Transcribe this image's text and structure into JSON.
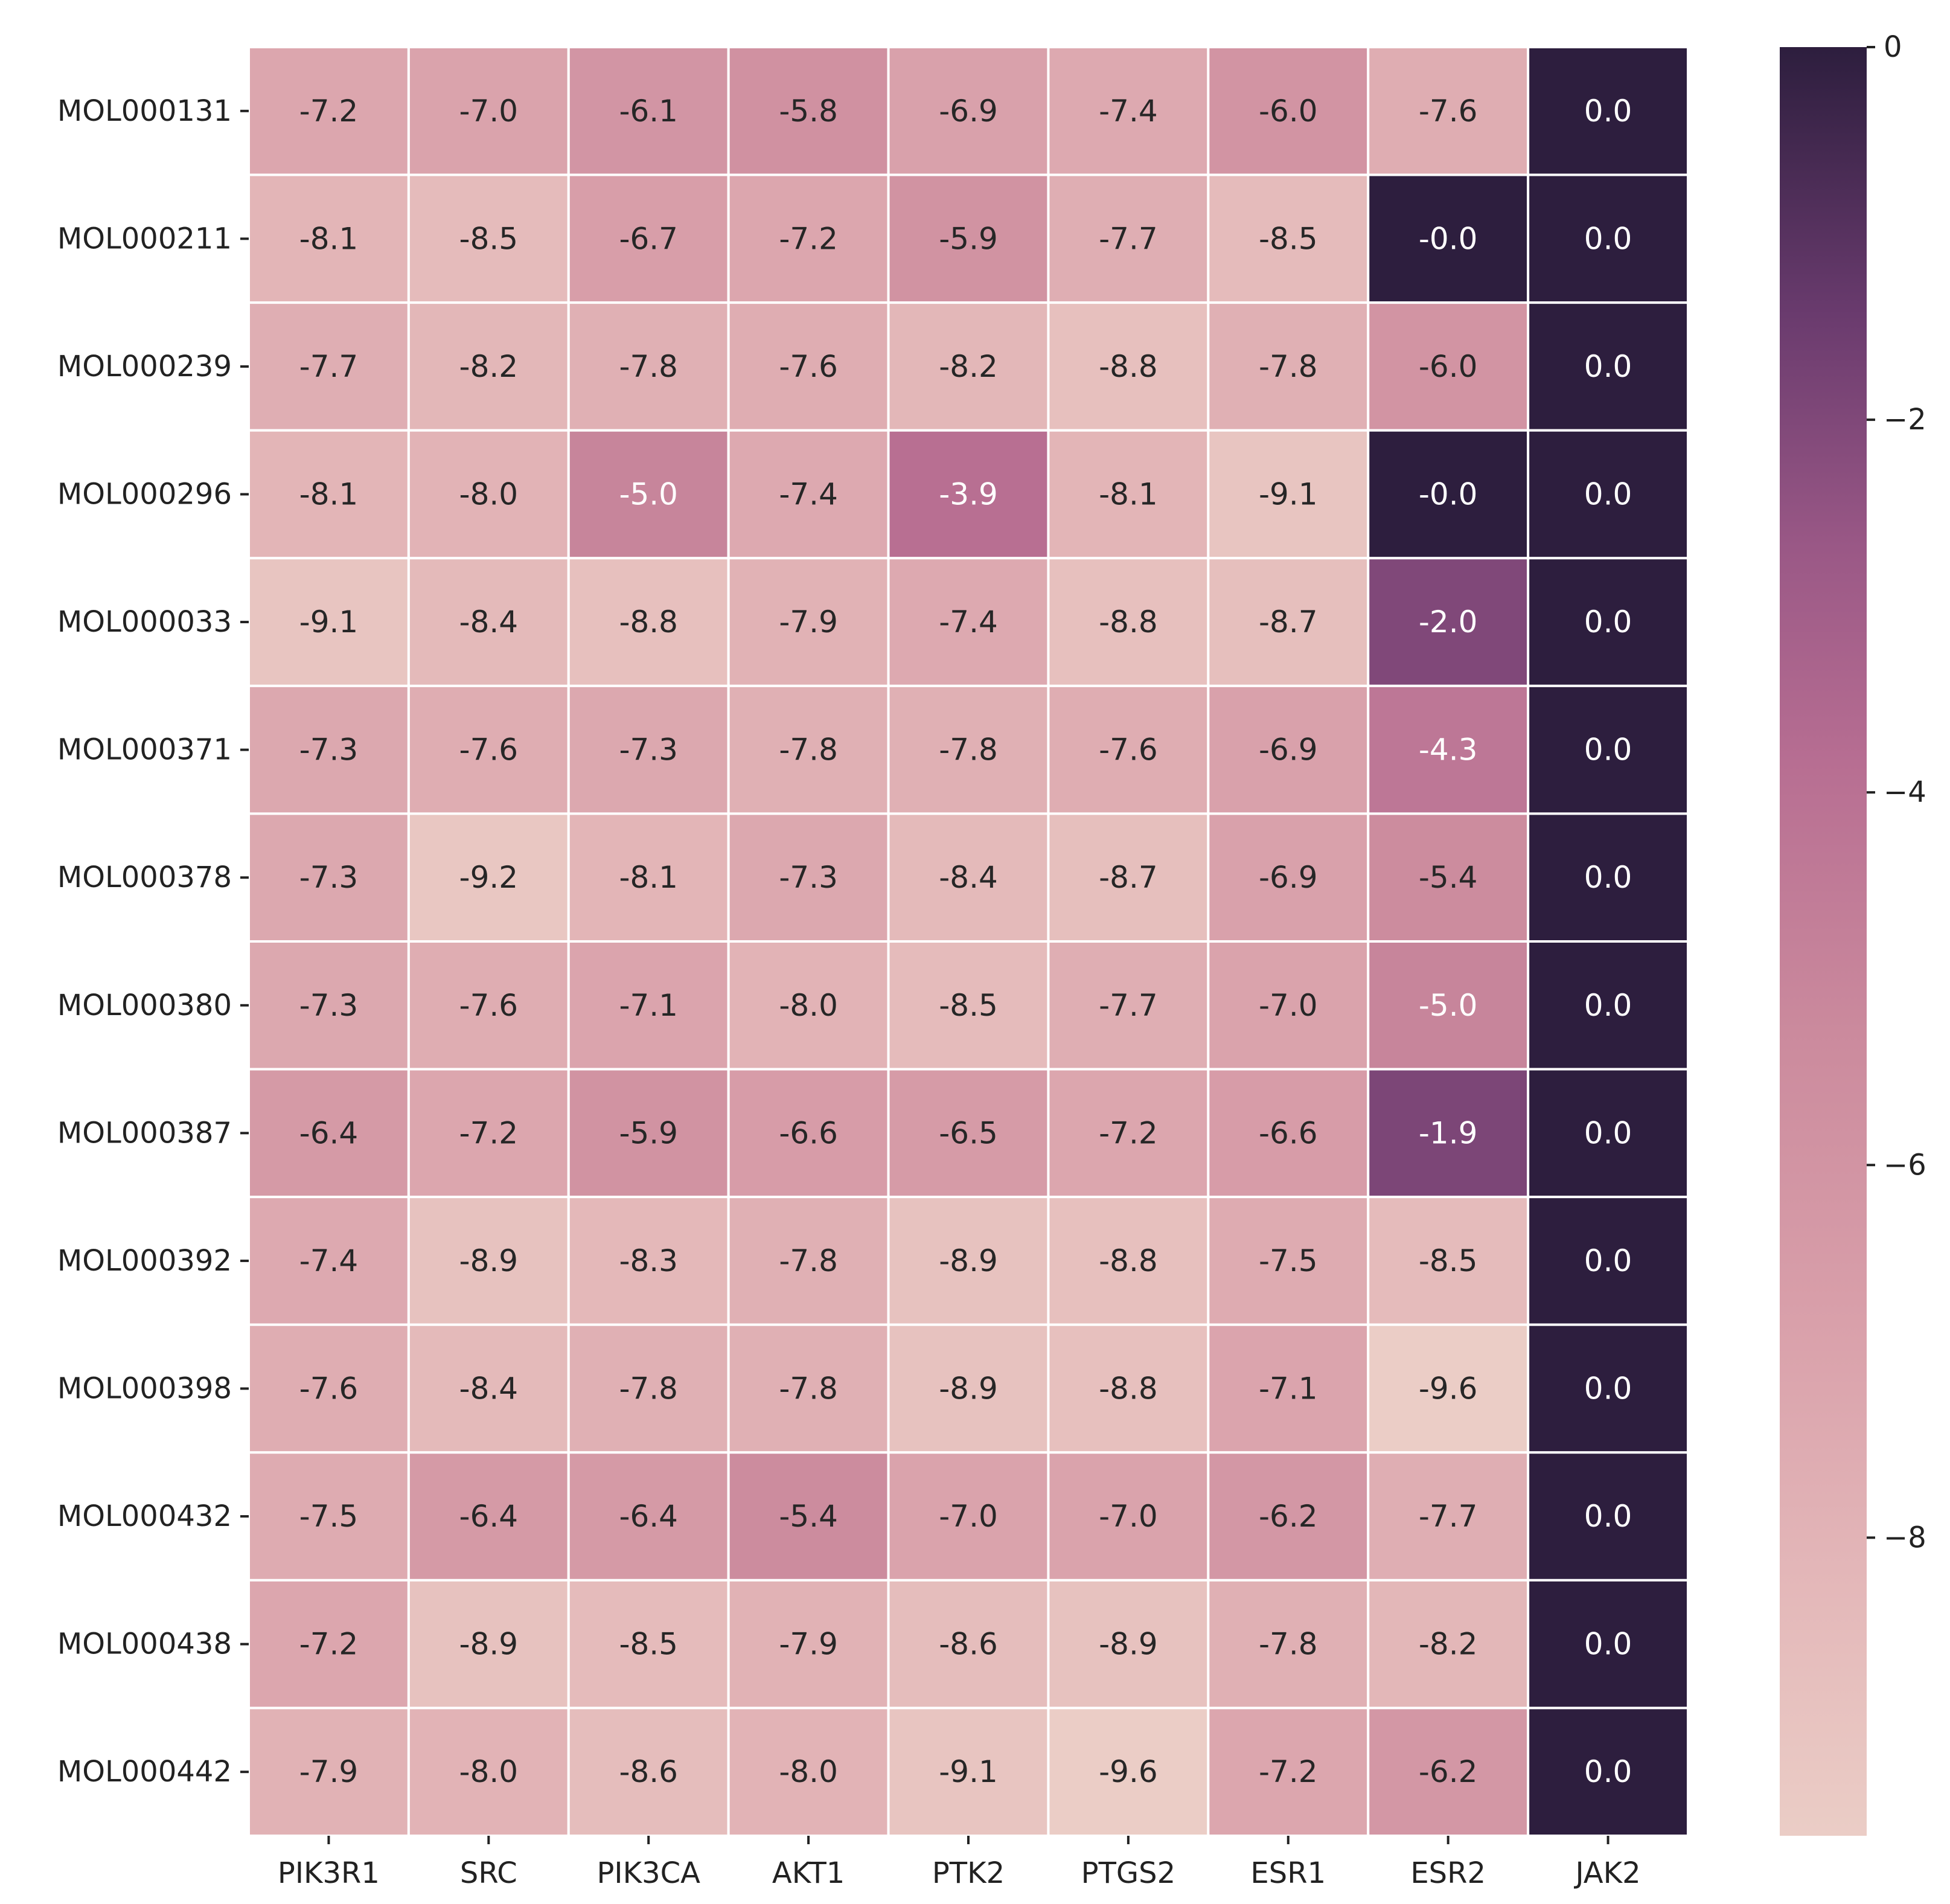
{
  "chart_data": {
    "type": "heatmap",
    "title": "",
    "xlabel": "",
    "ylabel": "",
    "columns": [
      "PIK3R1",
      "SRC",
      "PIK3CA",
      "AKT1",
      "PTK2",
      "PTGS2",
      "ESR1",
      "ESR2",
      "JAK2"
    ],
    "rows": [
      "MOL000131",
      "MOL000211",
      "MOL000239",
      "MOL000296",
      "MOL000033",
      "MOL000371",
      "MOL000378",
      "MOL000380",
      "MOL000387",
      "MOL000392",
      "MOL000398",
      "MOL000432",
      "MOL000438",
      "MOL000442"
    ],
    "values": [
      [
        -7.2,
        -7.0,
        -6.1,
        -5.8,
        -6.9,
        -7.4,
        -6.0,
        -7.6,
        0.0
      ],
      [
        -8.1,
        -8.5,
        -6.7,
        -7.2,
        -5.9,
        -7.7,
        -8.5,
        -0.0,
        0.0
      ],
      [
        -7.7,
        -8.2,
        -7.8,
        -7.6,
        -8.2,
        -8.8,
        -7.8,
        -6.0,
        0.0
      ],
      [
        -8.1,
        -8.0,
        -5.0,
        -7.4,
        -3.9,
        -8.1,
        -9.1,
        -0.0,
        0.0
      ],
      [
        -9.1,
        -8.4,
        -8.8,
        -7.9,
        -7.4,
        -8.8,
        -8.7,
        -2.0,
        0.0
      ],
      [
        -7.3,
        -7.6,
        -7.3,
        -7.8,
        -7.8,
        -7.6,
        -6.9,
        -4.3,
        0.0
      ],
      [
        -7.3,
        -9.2,
        -8.1,
        -7.3,
        -8.4,
        -8.7,
        -6.9,
        -5.4,
        0.0
      ],
      [
        -7.3,
        -7.6,
        -7.1,
        -8.0,
        -8.5,
        -7.7,
        -7.0,
        -5.0,
        0.0
      ],
      [
        -6.4,
        -7.2,
        -5.9,
        -6.6,
        -6.5,
        -7.2,
        -6.6,
        -1.9,
        0.0
      ],
      [
        -7.4,
        -8.9,
        -8.3,
        -7.8,
        -8.9,
        -8.8,
        -7.5,
        -8.5,
        0.0
      ],
      [
        -7.6,
        -8.4,
        -7.8,
        -7.8,
        -8.9,
        -8.8,
        -7.1,
        -9.6,
        0.0
      ],
      [
        -7.5,
        -6.4,
        -6.4,
        -5.4,
        -7.0,
        -7.0,
        -6.2,
        -7.7,
        0.0
      ],
      [
        -7.2,
        -8.9,
        -8.5,
        -7.9,
        -8.6,
        -8.9,
        -7.8,
        -8.2,
        0.0
      ],
      [
        -7.9,
        -8.0,
        -8.6,
        -8.0,
        -9.1,
        -9.6,
        -7.2,
        -6.2,
        0.0
      ]
    ],
    "value_labels": [
      [
        "-7.2",
        "-7.0",
        "-6.1",
        "-5.8",
        "-6.9",
        "-7.4",
        "-6.0",
        "-7.6",
        "0.0"
      ],
      [
        "-8.1",
        "-8.5",
        "-6.7",
        "-7.2",
        "-5.9",
        "-7.7",
        "-8.5",
        "-0.0",
        "0.0"
      ],
      [
        "-7.7",
        "-8.2",
        "-7.8",
        "-7.6",
        "-8.2",
        "-8.8",
        "-7.8",
        "-6.0",
        "0.0"
      ],
      [
        "-8.1",
        "-8.0",
        "-5.0",
        "-7.4",
        "-3.9",
        "-8.1",
        "-9.1",
        "-0.0",
        "0.0"
      ],
      [
        "-9.1",
        "-8.4",
        "-8.8",
        "-7.9",
        "-7.4",
        "-8.8",
        "-8.7",
        "-2.0",
        "0.0"
      ],
      [
        "-7.3",
        "-7.6",
        "-7.3",
        "-7.8",
        "-7.8",
        "-7.6",
        "-6.9",
        "-4.3",
        "0.0"
      ],
      [
        "-7.3",
        "-9.2",
        "-8.1",
        "-7.3",
        "-8.4",
        "-8.7",
        "-6.9",
        "-5.4",
        "0.0"
      ],
      [
        "-7.3",
        "-7.6",
        "-7.1",
        "-8.0",
        "-8.5",
        "-7.7",
        "-7.0",
        "-5.0",
        "0.0"
      ],
      [
        "-6.4",
        "-7.2",
        "-5.9",
        "-6.6",
        "-6.5",
        "-7.2",
        "-6.6",
        "-1.9",
        "0.0"
      ],
      [
        "-7.4",
        "-8.9",
        "-8.3",
        "-7.8",
        "-8.9",
        "-8.8",
        "-7.5",
        "-8.5",
        "0.0"
      ],
      [
        "-7.6",
        "-8.4",
        "-7.8",
        "-7.8",
        "-8.9",
        "-8.8",
        "-7.1",
        "-9.6",
        "0.0"
      ],
      [
        "-7.5",
        "-6.4",
        "-6.4",
        "-5.4",
        "-7.0",
        "-7.0",
        "-6.2",
        "-7.7",
        "0.0"
      ],
      [
        "-7.2",
        "-8.9",
        "-8.5",
        "-7.9",
        "-8.6",
        "-8.9",
        "-7.8",
        "-8.2",
        "0.0"
      ],
      [
        "-7.9",
        "-8.0",
        "-8.6",
        "-8.0",
        "-9.1",
        "-9.6",
        "-7.2",
        "-6.2",
        "0.0"
      ]
    ],
    "vmin": -9.6,
    "vmax": 0.0,
    "colorbar": {
      "ticks": [
        0,
        -2,
        -4,
        -6,
        -8
      ],
      "tick_labels": [
        "0",
        "−2",
        "−4",
        "−6",
        "−8"
      ],
      "position": "right"
    },
    "colormap": {
      "stops": [
        {
          "t": 0.0,
          "color": "#ebcdc6"
        },
        {
          "t": 0.15,
          "color": "#e3b6b8"
        },
        {
          "t": 0.3,
          "color": "#d89ea9"
        },
        {
          "t": 0.45,
          "color": "#cb8a9d"
        },
        {
          "t": 0.6,
          "color": "#b76e92"
        },
        {
          "t": 0.72,
          "color": "#9a5886"
        },
        {
          "t": 0.85,
          "color": "#6a3b6e"
        },
        {
          "t": 1.0,
          "color": "#2d1e3e"
        }
      ],
      "text_dark": "#262626",
      "text_light": "#ffffff"
    }
  }
}
